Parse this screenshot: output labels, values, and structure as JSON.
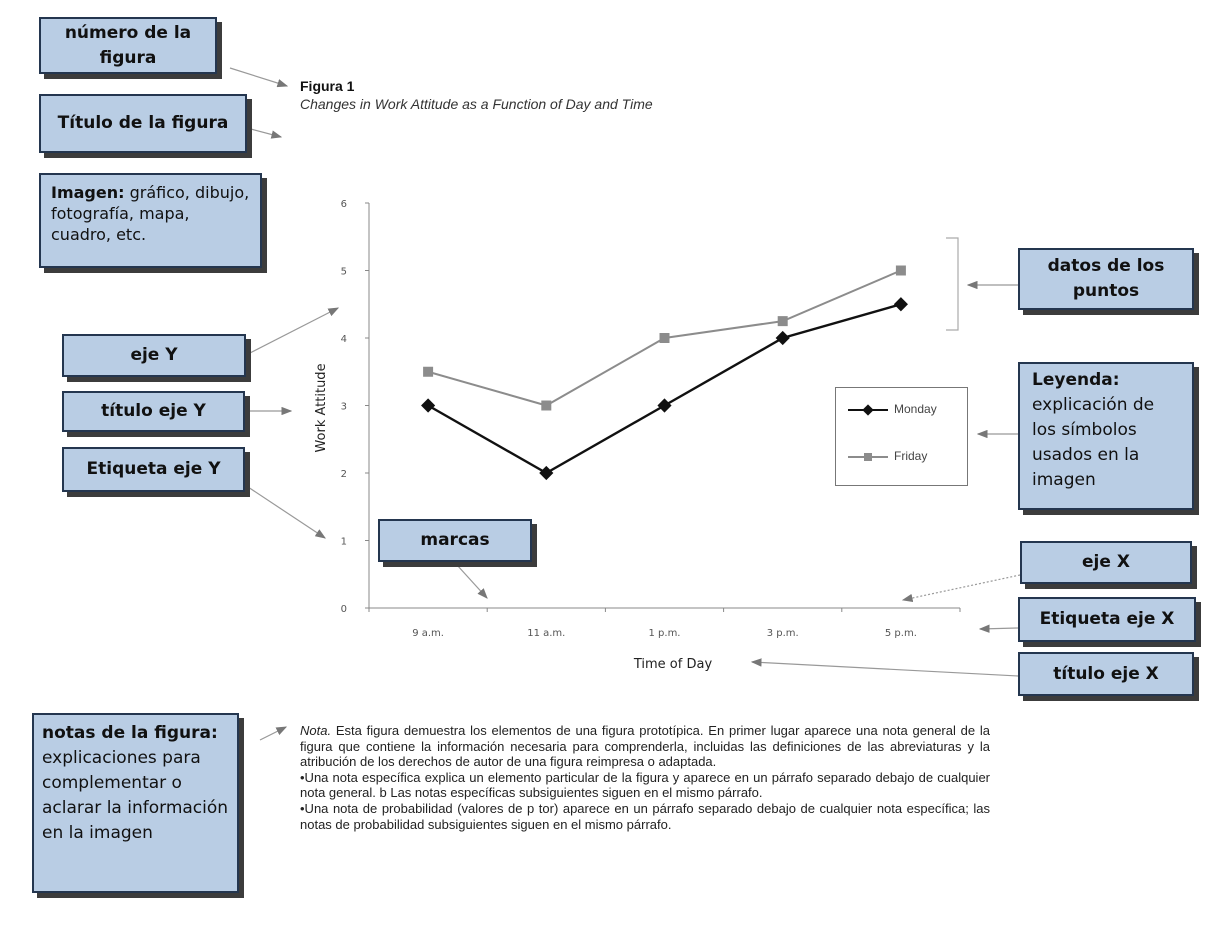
{
  "figure": {
    "number": "Figura 1",
    "title": "Changes in Work Attitude as a Function of Day and Time"
  },
  "callouts": {
    "numero": "número de la figura",
    "titulo": "Título de la figura",
    "imagen_bold": "Imagen:",
    "imagen_text": " gráfico, dibujo, fotografía, mapa, cuadro, etc.",
    "eje_y": "eje Y",
    "titulo_eje_y": "título eje Y",
    "etiqueta_eje_y": "Etiqueta eje Y",
    "marcas": "marcas",
    "datos": "datos de los puntos",
    "leyenda_bold": "Leyenda:",
    "leyenda_text": " explicación de los símbolos usados en la imagen",
    "eje_x": "eje X",
    "etiqueta_eje_x": "Etiqueta eje X",
    "titulo_eje_x": "título eje X",
    "notas_bold": "notas de la figura:",
    "notas_text": " explicaciones para complementar o aclarar la información en la imagen"
  },
  "chart_data": {
    "type": "line",
    "categories": [
      "9 a.m.",
      "11 a.m.",
      "1 p.m.",
      "3 p.m.",
      "5 p.m."
    ],
    "series": [
      {
        "name": "Monday",
        "values": [
          3,
          2,
          3,
          4,
          4.5
        ],
        "color": "#111111",
        "marker": "diamond"
      },
      {
        "name": "Friday",
        "values": [
          3.5,
          3,
          4,
          4.25,
          5
        ],
        "color": "#8c8c8c",
        "marker": "square"
      }
    ],
    "ylim": [
      0,
      6
    ],
    "yticks": [
      "0",
      "1",
      "2",
      "3",
      "4",
      "5",
      "6"
    ],
    "xlabel": "Time of Day",
    "ylabel": "Work Attitude",
    "legend_placement": "right"
  },
  "notes": {
    "lead": "Nota.",
    "general": " Esta figura demuestra los elementos de una figura prototípica. En primer lugar aparece una nota general de la figura que contiene la información necesaria para comprenderla, incluidas las definiciones de las abreviaturas y la atribución de los derechos de autor de una figura reimpresa o adaptada.",
    "specific": "•Una nota específica explica un elemento particular de la figura y aparece en un párrafo separado debajo de cualquier nota general. b Las notas específicas subsiguientes siguen en el mismo párrafo.",
    "probability": "•Una nota de probabilidad (valores de p tor) aparece en un párrafo separado debajo de cualquier nota específica; las notas de probabilidad subsiguientes siguen en el mismo párrafo."
  }
}
